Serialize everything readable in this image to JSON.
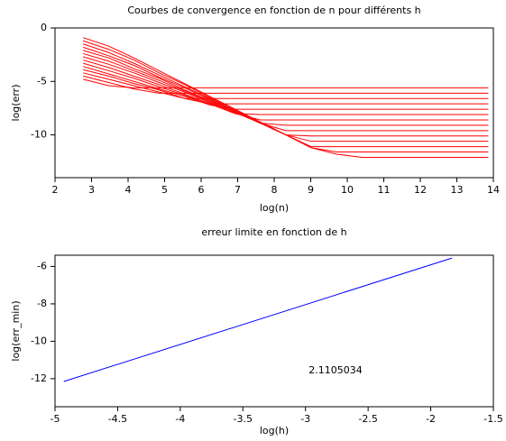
{
  "chart_data": [
    {
      "type": "line",
      "title": "Courbes de convergence en fonction de n pour différents h",
      "x_label": "log(n)",
      "y_label": "log(err)",
      "color": "#ff0000",
      "x": [
        2.77,
        3.47,
        4.16,
        4.85,
        5.55,
        6.24,
        6.93,
        7.62,
        8.32,
        9.01,
        9.7,
        10.4,
        11.09,
        11.78,
        12.48,
        13.17,
        13.86
      ],
      "series": [
        {
          "values": [
            -0.9,
            -1.7,
            -2.8,
            -4.0,
            -5.2,
            -6.4,
            -7.6,
            -8.8,
            -10.0,
            -11.2,
            -11.8,
            -12.1,
            -12.1,
            -12.1,
            -12.1,
            -12.1,
            -12.1
          ]
        },
        {
          "values": [
            -1.2,
            -2.0,
            -3.0,
            -4.2,
            -5.3,
            -6.5,
            -7.7,
            -8.8,
            -10.0,
            -11.2,
            -11.6,
            -11.6,
            -11.6,
            -11.6,
            -11.6,
            -11.6,
            -11.6
          ]
        },
        {
          "values": [
            -1.5,
            -2.3,
            -3.3,
            -4.4,
            -5.5,
            -6.6,
            -7.7,
            -8.8,
            -10.0,
            -11.1,
            -11.1,
            -11.1,
            -11.1,
            -11.1,
            -11.1,
            -11.1,
            -11.1
          ]
        },
        {
          "values": [
            -1.8,
            -2.6,
            -3.5,
            -4.6,
            -5.6,
            -6.7,
            -7.8,
            -8.9,
            -10.0,
            -10.6,
            -10.6,
            -10.6,
            -10.6,
            -10.6,
            -10.6,
            -10.6,
            -10.6
          ]
        },
        {
          "values": [
            -2.1,
            -2.8,
            -3.8,
            -4.7,
            -5.8,
            -6.8,
            -7.8,
            -8.9,
            -10.0,
            -10.1,
            -10.1,
            -10.1,
            -10.1,
            -10.1,
            -10.1,
            -10.1,
            -10.1
          ]
        },
        {
          "values": [
            -2.4,
            -3.1,
            -4.0,
            -4.9,
            -5.9,
            -6.9,
            -7.9,
            -8.9,
            -9.6,
            -9.6,
            -9.6,
            -9.6,
            -9.6,
            -9.6,
            -9.6,
            -9.6,
            -9.6
          ]
        },
        {
          "values": [
            -2.7,
            -3.4,
            -4.2,
            -5.1,
            -6.0,
            -7.0,
            -7.9,
            -8.9,
            -9.1,
            -9.1,
            -9.1,
            -9.1,
            -9.1,
            -9.1,
            -9.1,
            -9.1,
            -9.1
          ]
        },
        {
          "values": [
            -3.0,
            -3.7,
            -4.5,
            -5.3,
            -6.2,
            -7.1,
            -8.0,
            -8.6,
            -8.6,
            -8.6,
            -8.6,
            -8.6,
            -8.6,
            -8.6,
            -8.6,
            -8.6,
            -8.6
          ]
        },
        {
          "values": [
            -3.3,
            -4.0,
            -4.7,
            -5.5,
            -6.3,
            -7.1,
            -8.0,
            -8.1,
            -8.1,
            -8.1,
            -8.1,
            -8.1,
            -8.1,
            -8.1,
            -8.1,
            -8.1,
            -8.1
          ]
        },
        {
          "values": [
            -3.6,
            -4.3,
            -5.0,
            -5.7,
            -6.4,
            -7.2,
            -7.6,
            -7.6,
            -7.6,
            -7.6,
            -7.6,
            -7.6,
            -7.6,
            -7.6,
            -7.6,
            -7.6,
            -7.6
          ]
        },
        {
          "values": [
            -3.9,
            -4.5,
            -5.2,
            -5.8,
            -6.6,
            -7.1,
            -7.1,
            -7.1,
            -7.1,
            -7.1,
            -7.1,
            -7.1,
            -7.1,
            -7.1,
            -7.1,
            -7.1,
            -7.1
          ]
        },
        {
          "values": [
            -4.2,
            -4.8,
            -5.4,
            -6.0,
            -6.6,
            -6.6,
            -6.6,
            -6.6,
            -6.6,
            -6.6,
            -6.6,
            -6.6,
            -6.6,
            -6.6,
            -6.6,
            -6.6,
            -6.6
          ]
        },
        {
          "values": [
            -4.5,
            -5.1,
            -5.7,
            -6.1,
            -6.1,
            -6.1,
            -6.1,
            -6.1,
            -6.1,
            -6.1,
            -6.1,
            -6.1,
            -6.1,
            -6.1,
            -6.1,
            -6.1,
            -6.1
          ]
        },
        {
          "values": [
            -4.8,
            -5.4,
            -5.6,
            -5.6,
            -5.6,
            -5.6,
            -5.6,
            -5.6,
            -5.6,
            -5.6,
            -5.6,
            -5.6,
            -5.6,
            -5.6,
            -5.6,
            -5.6,
            -5.6
          ]
        }
      ],
      "xlim": [
        2,
        14
      ],
      "xticks": [
        2,
        3,
        4,
        5,
        6,
        7,
        8,
        9,
        10,
        11,
        12,
        13,
        14
      ],
      "ylim": [
        -14,
        0
      ],
      "yticks": [
        0,
        -5,
        -10
      ]
    },
    {
      "type": "line",
      "title": "erreur limite en fonction de h",
      "x_label": "log(h)",
      "y_label": "log(err_min)",
      "color": "#0000ff",
      "x": [
        -4.93,
        -1.83
      ],
      "series": [
        {
          "values": [
            -12.15,
            -5.55
          ]
        }
      ],
      "annotation": "2.1105034",
      "xlim": [
        -5,
        -1.5
      ],
      "xticks": [
        -5,
        -4.5,
        -4,
        -3.5,
        -3,
        -2.5,
        -2,
        -1.5
      ],
      "ylim": [
        -13.5,
        -5.4
      ],
      "yticks": [
        -6,
        -8,
        -10,
        -12
      ]
    }
  ]
}
